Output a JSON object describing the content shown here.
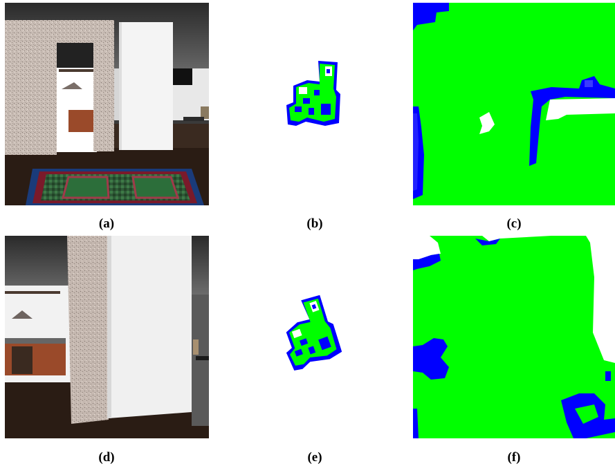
{
  "figure": {
    "panels": [
      {
        "id": "a",
        "caption": "(a)",
        "content": "first-person RGB view of indoor scene"
      },
      {
        "id": "b",
        "caption": "(b)",
        "content": "top-down occupancy map (global)"
      },
      {
        "id": "c",
        "caption": "(c)",
        "content": "egocentric local occupancy map"
      },
      {
        "id": "d",
        "caption": "(d)",
        "content": "first-person RGB view of indoor scene"
      },
      {
        "id": "e",
        "caption": "(e)",
        "content": "top-down occupancy map (global, rotated)"
      },
      {
        "id": "f",
        "caption": "(f)",
        "content": "egocentric local occupancy map"
      }
    ]
  },
  "colors": {
    "free": "#00ff00",
    "obstacle": "#0000ff",
    "unknown": "#ffffff"
  }
}
